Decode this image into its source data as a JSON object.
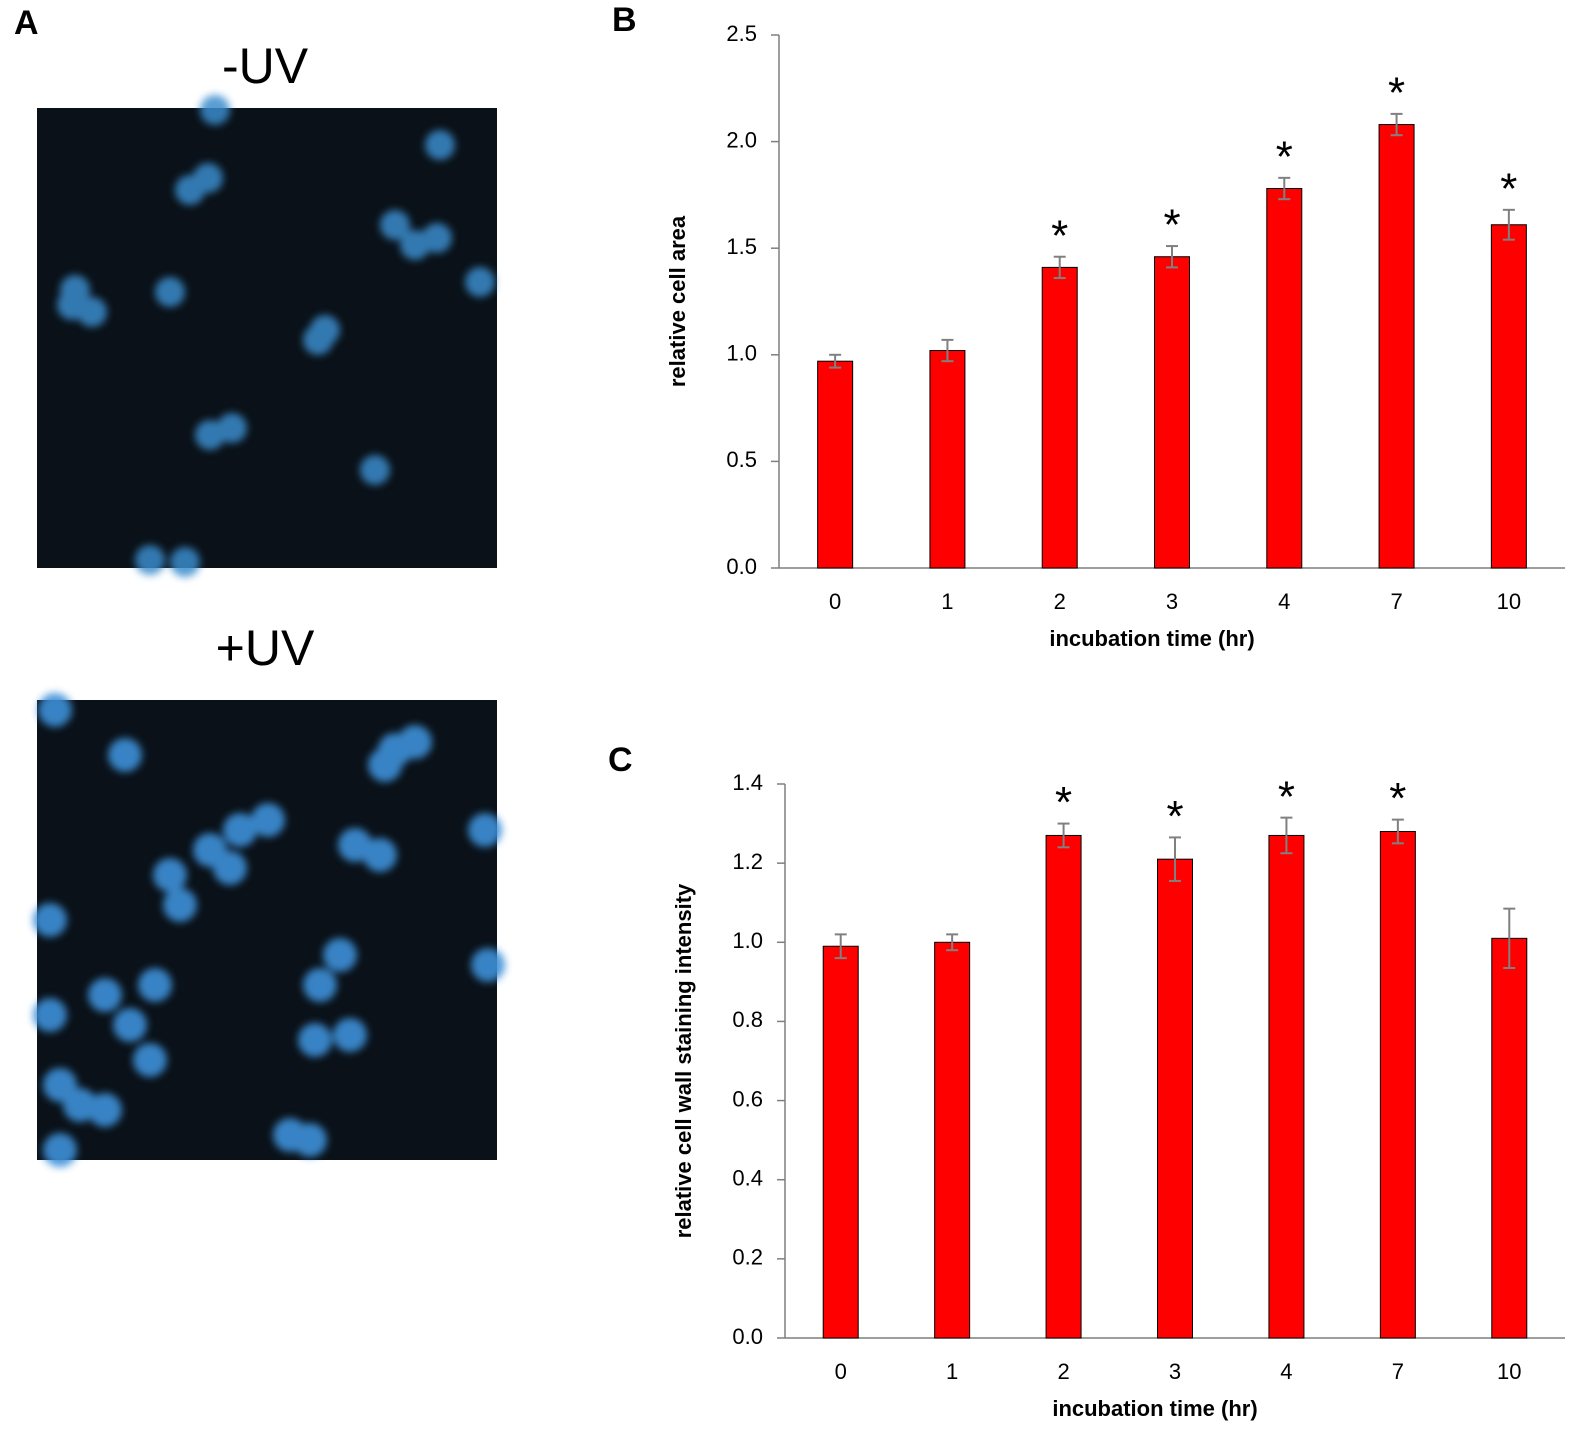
{
  "figure": {
    "panel_labels": [
      "A",
      "B",
      "C"
    ],
    "image_labels": [
      "-UV",
      "+UV"
    ]
  },
  "chart_data": [
    {
      "type": "bar",
      "ylabel": "relative cell area",
      "xlabel": "incubation time (hr)",
      "categories": [
        "0",
        "1",
        "2",
        "3",
        "4",
        "7",
        "10"
      ],
      "values": [
        0.97,
        1.02,
        1.41,
        1.46,
        1.78,
        2.08,
        1.61
      ],
      "errors": [
        0.03,
        0.05,
        0.05,
        0.05,
        0.05,
        0.05,
        0.07
      ],
      "significance": [
        null,
        null,
        "*",
        "*",
        "*",
        "*",
        "*"
      ],
      "color": "#ff0000",
      "ylim": [
        0,
        2.5
      ],
      "yticks": [
        {
          "value": 0,
          "label": "0.0"
        },
        0.5,
        {
          "value": 1,
          "label": "1.0"
        },
        1.5,
        {
          "value": 2,
          "label": "2.0"
        },
        2.5
      ]
    },
    {
      "type": "bar",
      "ylabel": "relative cell wall staining intensity",
      "xlabel": "incubation time (hr)",
      "categories": [
        "0",
        "1",
        "2",
        "3",
        "4",
        "7",
        "10"
      ],
      "values": [
        0.99,
        1.0,
        1.27,
        1.21,
        1.27,
        1.28,
        1.01
      ],
      "errors": [
        0.03,
        0.02,
        0.03,
        0.055,
        0.045,
        0.03,
        0.075
      ],
      "significance": [
        null,
        null,
        "*",
        "*",
        "*",
        "*",
        null
      ],
      "color": "#ff0000",
      "ylim": [
        0,
        1.4
      ],
      "yticks": [
        {
          "value": 0,
          "label": "0.0"
        },
        0.2,
        0.4,
        0.6,
        0.8,
        {
          "value": 1,
          "label": "1.0"
        },
        1.2,
        1.4
      ]
    }
  ]
}
